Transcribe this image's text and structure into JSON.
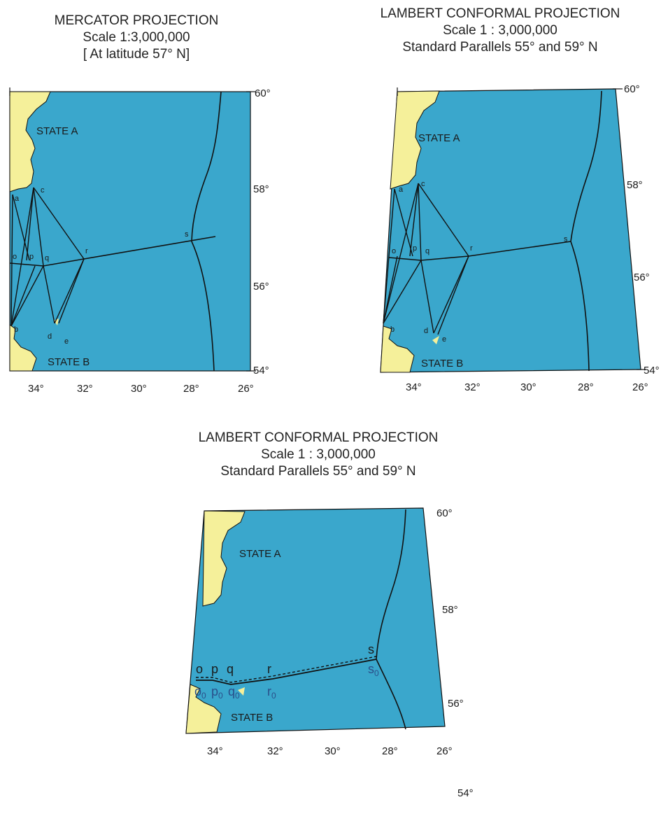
{
  "maps": [
    {
      "title_lines": [
        "MERCATOR PROJECTION",
        "Scale 1:3,000,000",
        "[ At latitude 57° N]"
      ],
      "lat_labels": [
        "60°",
        "58°",
        "56°",
        "54°"
      ],
      "lon_labels": [
        "34°",
        "32°",
        "30°",
        "28°",
        "26°"
      ],
      "state_a": "STATE A",
      "state_b": "STATE B",
      "points": [
        "a",
        "b",
        "c",
        "d",
        "e",
        "o",
        "p",
        "q",
        "r",
        "s"
      ]
    },
    {
      "title_lines": [
        "LAMBERT CONFORMAL PROJECTION",
        "Scale 1 : 3,000,000",
        "Standard Parallels 55° and 59° N"
      ],
      "lat_labels": [
        "60°",
        "58°",
        "56°",
        "54°"
      ],
      "lon_labels": [
        "34°",
        "32°",
        "30°",
        "28°",
        "26°"
      ],
      "state_a": "STATE A",
      "state_b": "STATE B",
      "points": [
        "a",
        "b",
        "c",
        "d",
        "e",
        "o",
        "p",
        "q",
        "r",
        "s"
      ]
    },
    {
      "title_lines": [
        "LAMBERT CONFORMAL PROJECTION",
        "Scale 1 : 3,000,000",
        "Standard Parallels 55° and 59° N"
      ],
      "lat_labels": [
        "60°",
        "58°",
        "56°",
        "54°"
      ],
      "lon_labels": [
        "34°",
        "32°",
        "30°",
        "28°",
        "26°"
      ],
      "state_a": "STATE A",
      "state_b": "STATE B",
      "points": [
        "o",
        "p",
        "q",
        "r",
        "s"
      ],
      "points_sub": [
        "o",
        "p",
        "q",
        "r",
        "s"
      ],
      "subscript": "0"
    }
  ],
  "colors": {
    "sea": "#3aa7cc",
    "land": "#f5f09a",
    "line": "#111111"
  }
}
